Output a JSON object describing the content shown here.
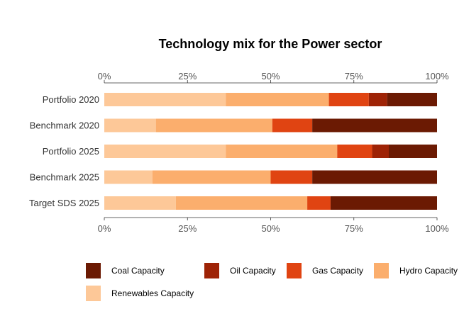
{
  "chart_data": {
    "type": "bar",
    "orientation": "horizontal",
    "stacked": true,
    "title": "Technology mix for the Power sector",
    "xlabel": "",
    "ylabel": "",
    "xlim": [
      0,
      1
    ],
    "x_ticks": [
      "0%",
      "25%",
      "50%",
      "75%",
      "100%"
    ],
    "categories": [
      "Portfolio 2020",
      "Benchmark 2020",
      "Portfolio 2025",
      "Benchmark 2025",
      "Target SDS 2025"
    ],
    "series": [
      {
        "name": "Renewables Capacity",
        "color": "#fdc898",
        "values": [
          0.365,
          0.155,
          0.365,
          0.145,
          0.215
        ]
      },
      {
        "name": "Hydro Capacity",
        "color": "#fbae6d",
        "values": [
          0.31,
          0.35,
          0.335,
          0.355,
          0.395
        ]
      },
      {
        "name": "Gas Capacity",
        "color": "#e04412",
        "values": [
          0.12,
          0.12,
          0.105,
          0.125,
          0.07
        ]
      },
      {
        "name": "Oil Capacity",
        "color": "#9e2306",
        "values": [
          0.055,
          0.0,
          0.05,
          0.0,
          0.0
        ]
      },
      {
        "name": "Coal Capacity",
        "color": "#6b1a03",
        "values": [
          0.15,
          0.375,
          0.145,
          0.375,
          0.32
        ]
      }
    ],
    "legend": {
      "position": "bottom",
      "order": [
        "Coal Capacity",
        "Oil Capacity",
        "Gas Capacity",
        "Hydro Capacity",
        "Renewables Capacity"
      ]
    },
    "grid": false
  }
}
